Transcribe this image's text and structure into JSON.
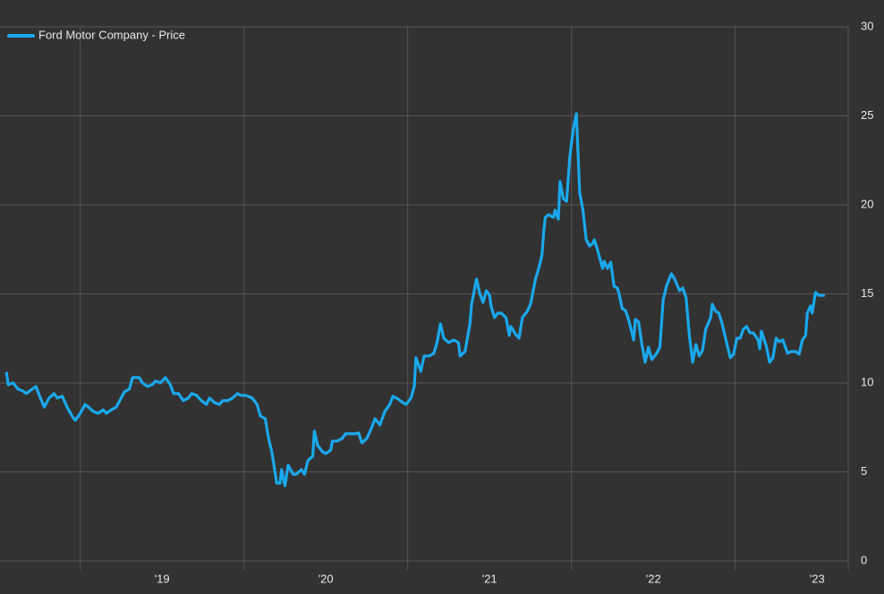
{
  "chart_data": {
    "type": "line",
    "legend": "top-left",
    "grid": true,
    "xlim": [
      2018.51,
      2023.69
    ],
    "xticks": [
      {
        "value": 2019.5,
        "label": "'19"
      },
      {
        "value": 2020.5,
        "label": "'20"
      },
      {
        "value": 2021.5,
        "label": "'21"
      },
      {
        "value": 2022.5,
        "label": "'22"
      },
      {
        "value": 2023.5,
        "label": "'23"
      }
    ],
    "xgrid": [
      2019,
      2020,
      2021,
      2022,
      2023
    ],
    "ylim": [
      0,
      30
    ],
    "yticks": [
      0,
      5,
      10,
      15,
      20,
      25,
      30
    ],
    "x": [
      2018.55,
      2018.56,
      2018.59,
      2018.62,
      2018.65,
      2018.67,
      2018.7,
      2018.73,
      2018.75,
      2018.78,
      2018.81,
      2018.84,
      2018.86,
      2018.89,
      2018.92,
      2018.95,
      2018.97,
      2019.0,
      2019.03,
      2019.05,
      2019.08,
      2019.11,
      2019.14,
      2019.16,
      2019.19,
      2019.22,
      2019.25,
      2019.27,
      2019.3,
      2019.32,
      2019.36,
      2019.38,
      2019.41,
      2019.44,
      2019.46,
      2019.49,
      2019.52,
      2019.55,
      2019.57,
      2019.6,
      2019.63,
      2019.66,
      2019.68,
      2019.71,
      2019.74,
      2019.77,
      2019.79,
      2019.82,
      2019.85,
      2019.87,
      2019.9,
      2019.93,
      2019.96,
      2019.98,
      2020.01,
      2020.05,
      2020.08,
      2020.1,
      2020.13,
      2020.15,
      2020.17,
      2020.2,
      2020.22,
      2020.23,
      2020.25,
      2020.27,
      2020.3,
      2020.32,
      2020.35,
      2020.37,
      2020.39,
      2020.42,
      2020.43,
      2020.45,
      2020.48,
      2020.5,
      2020.53,
      2020.54,
      2020.57,
      2020.6,
      2020.62,
      2020.65,
      2020.68,
      2020.7,
      2020.72,
      2020.75,
      2020.78,
      2020.8,
      2020.83,
      2020.86,
      2020.89,
      2020.91,
      2020.94,
      2020.97,
      2020.99,
      2021.02,
      2021.04,
      2021.05,
      2021.08,
      2021.1,
      2021.13,
      2021.16,
      2021.18,
      2021.2,
      2021.22,
      2021.25,
      2021.28,
      2021.31,
      2021.32,
      2021.35,
      2021.38,
      2021.39,
      2021.42,
      2021.44,
      2021.46,
      2021.48,
      2021.5,
      2021.51,
      2021.53,
      2021.55,
      2021.57,
      2021.6,
      2021.62,
      2021.63,
      2021.66,
      2021.68,
      2021.7,
      2021.73,
      2021.75,
      2021.78,
      2021.8,
      2021.82,
      2021.83,
      2021.84,
      2021.86,
      2021.89,
      2021.9,
      2021.92,
      2021.93,
      2021.95,
      2021.97,
      2021.99,
      2022.01,
      2022.03,
      2022.05,
      2022.07,
      2022.09,
      2022.11,
      2022.13,
      2022.14,
      2022.16,
      2022.19,
      2022.2,
      2022.22,
      2022.24,
      2022.26,
      2022.28,
      2022.29,
      2022.31,
      2022.33,
      2022.35,
      2022.38,
      2022.39,
      2022.41,
      2022.43,
      2022.45,
      2022.47,
      2022.49,
      2022.52,
      2022.54,
      2022.56,
      2022.58,
      2022.61,
      2022.63,
      2022.66,
      2022.68,
      2022.7,
      2022.72,
      2022.74,
      2022.76,
      2022.78,
      2022.8,
      2022.82,
      2022.85,
      2022.86,
      2022.88,
      2022.9,
      2022.92,
      2022.95,
      2022.97,
      2022.99,
      2023.01,
      2023.03,
      2023.05,
      2023.07,
      2023.09,
      2023.11,
      2023.14,
      2023.15,
      2023.16,
      2023.19,
      2023.21,
      2023.23,
      2023.25,
      2023.27,
      2023.29,
      2023.32,
      2023.34,
      2023.37,
      2023.39,
      2023.41,
      2023.43,
      2023.44,
      2023.46,
      2023.47,
      2023.49,
      2023.51,
      2023.54
    ],
    "series": [
      {
        "name": "Ford Motor Company - Price",
        "color": "#1aa8ed",
        "values": [
          10.55,
          9.9,
          10.0,
          9.65,
          9.55,
          9.4,
          9.6,
          9.8,
          9.3,
          8.64,
          9.15,
          9.4,
          9.15,
          9.25,
          8.64,
          8.14,
          7.89,
          8.29,
          8.79,
          8.64,
          8.39,
          8.29,
          8.49,
          8.29,
          8.49,
          8.64,
          9.15,
          9.5,
          9.65,
          10.3,
          10.3,
          10.0,
          9.8,
          9.9,
          10.1,
          10.0,
          10.3,
          9.9,
          9.4,
          9.4,
          9.0,
          9.15,
          9.4,
          9.3,
          9.0,
          8.79,
          9.15,
          8.89,
          8.79,
          9.0,
          9.0,
          9.15,
          9.4,
          9.3,
          9.3,
          9.15,
          8.79,
          8.14,
          7.99,
          6.88,
          6.13,
          4.37,
          4.37,
          5.13,
          4.22,
          5.38,
          4.87,
          4.87,
          5.13,
          4.87,
          5.63,
          5.88,
          7.29,
          6.48,
          6.13,
          6.03,
          6.23,
          6.73,
          6.73,
          6.88,
          7.14,
          7.14,
          7.14,
          7.19,
          6.63,
          6.88,
          7.49,
          7.99,
          7.64,
          8.39,
          8.79,
          9.25,
          9.1,
          8.89,
          8.79,
          9.15,
          9.8,
          11.41,
          10.65,
          11.51,
          11.51,
          11.66,
          12.31,
          13.32,
          12.51,
          12.26,
          12.41,
          12.26,
          11.51,
          11.76,
          13.32,
          14.42,
          15.83,
          15.03,
          14.52,
          15.18,
          14.92,
          14.27,
          13.67,
          13.92,
          13.92,
          13.67,
          12.66,
          13.17,
          12.71,
          12.51,
          13.67,
          14.02,
          14.42,
          15.83,
          16.43,
          17.19,
          18.44,
          19.3,
          19.45,
          19.3,
          19.7,
          19.2,
          21.31,
          20.35,
          20.2,
          22.71,
          24.22,
          25.13,
          20.7,
          19.7,
          18.04,
          17.69,
          17.84,
          18.04,
          17.44,
          16.43,
          16.83,
          16.43,
          16.78,
          15.43,
          15.33,
          15.03,
          14.17,
          14.07,
          13.52,
          12.41,
          13.57,
          13.42,
          12.16,
          11.16,
          12.01,
          11.31,
          11.66,
          12.01,
          14.67,
          15.43,
          16.13,
          15.83,
          15.18,
          15.33,
          14.77,
          12.66,
          11.16,
          12.16,
          11.51,
          11.81,
          13.02,
          13.67,
          14.42,
          14.02,
          13.92,
          13.32,
          12.16,
          11.41,
          11.61,
          12.51,
          12.51,
          13.02,
          13.17,
          12.81,
          12.81,
          12.41,
          11.91,
          12.91,
          12.06,
          11.16,
          11.41,
          12.51,
          12.31,
          12.41,
          11.66,
          11.76,
          11.76,
          11.61,
          12.41,
          12.66,
          13.92,
          14.32,
          13.92,
          15.08,
          14.92,
          14.92
        ]
      }
    ]
  }
}
